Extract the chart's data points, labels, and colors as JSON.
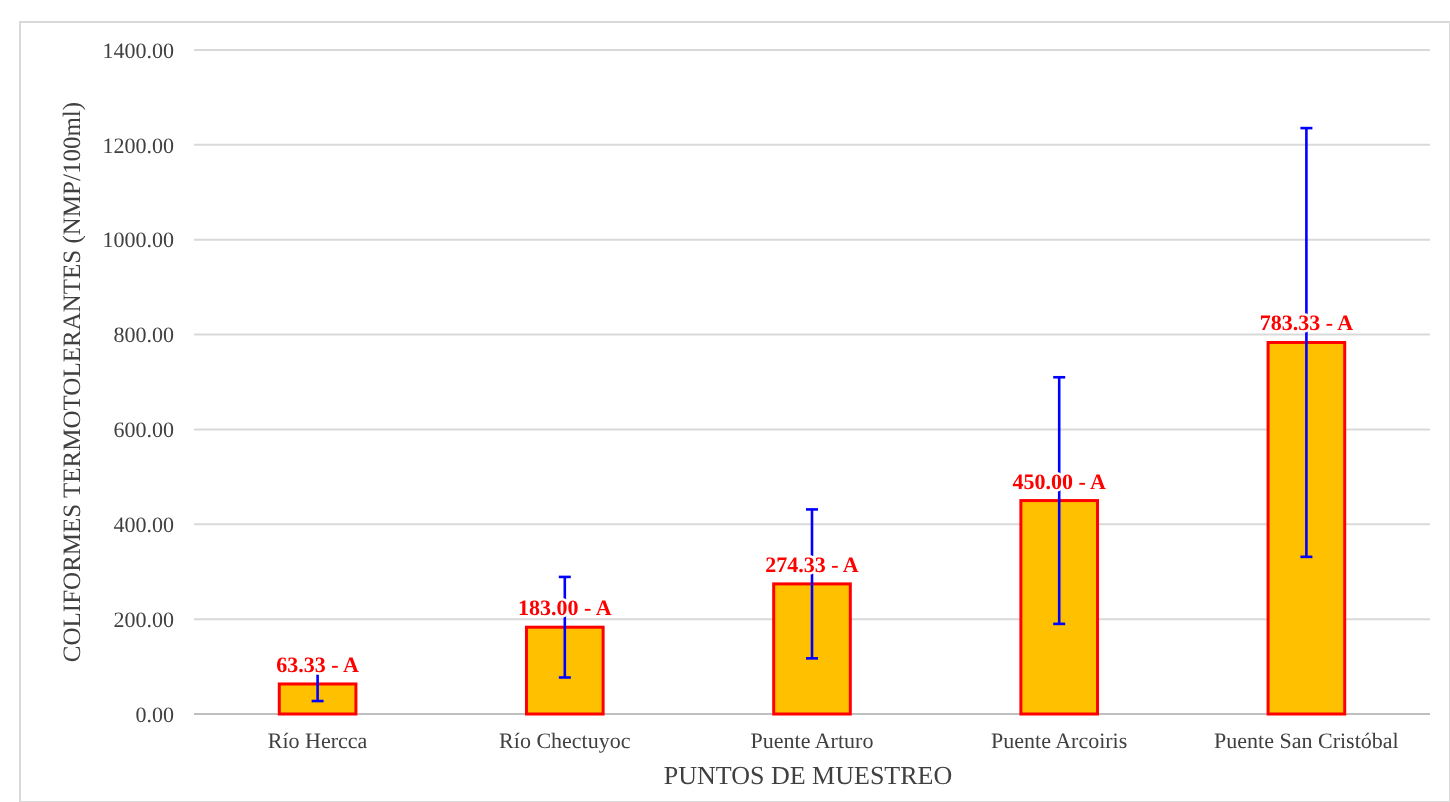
{
  "chart_data": {
    "type": "bar",
    "xlabel": "PUNTOS DE MUESTREO",
    "ylabel": "COLIFORMES TERMOTOLERANTES (NMP/100ml)",
    "categories": [
      "Río Hercca",
      "Río Chectuyoc",
      "Puente Arturo",
      "Puente Arcoiris",
      "Puente San Cristóbal"
    ],
    "values": [
      63.33,
      183.0,
      274.33,
      450.0,
      783.33
    ],
    "color": "#ffc000",
    "errors": [
      36,
      106,
      157,
      260,
      452
    ],
    "value_labels": [
      "63.33 - A",
      "183.00 - A",
      "274.33 - A",
      "450.00 - A",
      "783.33 - A"
    ],
    "ylim": [
      0,
      1400
    ],
    "yticks": [
      {
        "value": 0,
        "label": "0.00"
      },
      {
        "value": 200,
        "label": "200.00"
      },
      {
        "value": 400,
        "label": "400.00"
      },
      {
        "value": 600,
        "label": "600.00"
      },
      {
        "value": 800,
        "label": "800.00"
      },
      {
        "value": 1000,
        "label": "1000.00"
      },
      {
        "value": 1200,
        "label": "1200.00"
      },
      {
        "value": 1400,
        "label": "1400.00"
      }
    ],
    "grid": "y"
  }
}
